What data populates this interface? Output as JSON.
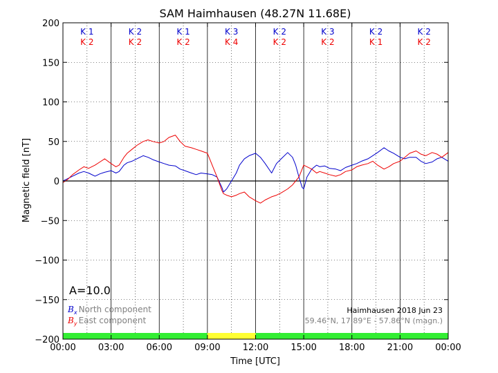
{
  "chart_data": {
    "type": "line",
    "title": "SAM Haimhausen (48.27N 11.68E)",
    "xlabel": "Time [UTC]",
    "ylabel": "Magnetic field [nT]",
    "xlim": [
      0,
      24
    ],
    "ylim": [
      -200,
      200
    ],
    "x_ticks": [
      0,
      3,
      6,
      9,
      12,
      15,
      18,
      21,
      24
    ],
    "x_tick_labels": [
      "00:00",
      "03:00",
      "06:00",
      "09:00",
      "12:00",
      "15:00",
      "18:00",
      "21:00",
      "00:00"
    ],
    "y_ticks": [
      -200,
      -150,
      -100,
      -50,
      0,
      50,
      100,
      150,
      200
    ],
    "y_tick_labels": [
      "−200",
      "−150",
      "−100",
      "−50",
      "0",
      "50",
      "100",
      "150",
      "200"
    ],
    "grid": true,
    "k_indices": {
      "bx": [
        1,
        2,
        1,
        3,
        2,
        3,
        2,
        2
      ],
      "by": [
        2,
        2,
        2,
        4,
        2,
        2,
        1,
        2
      ],
      "prefix": "K"
    },
    "activity_bar": [
      {
        "from": 0,
        "to": 9,
        "color": "#33ee33"
      },
      {
        "from": 9,
        "to": 12,
        "color": "#ffff33"
      },
      {
        "from": 12,
        "to": 24,
        "color": "#33ee33"
      }
    ],
    "annotations": {
      "a_index": "A=10.0",
      "station_date": "Haimhausen 2018 Jun 23",
      "coords": "59.46°N, 17.89°E - 57.86°N (magn.)"
    },
    "legend": {
      "placement": "bottom-left",
      "entries": [
        {
          "symbol": "B",
          "sub": "x",
          "label": "North component",
          "color": "#0000cc"
        },
        {
          "symbol": "B",
          "sub": "y",
          "label": "East component",
          "color": "#ee0000"
        }
      ]
    },
    "series": [
      {
        "color": "#0000cc",
        "x": [
          0,
          0.3,
          0.6,
          1,
          1.3,
          1.6,
          2,
          2.3,
          2.6,
          3,
          3.3,
          3.5,
          3.8,
          4,
          4.3,
          4.6,
          5,
          5.3,
          5.6,
          6,
          6.3,
          6.6,
          7,
          7.3,
          7.6,
          8,
          8.3,
          8.6,
          9,
          9.3,
          9.6,
          9.9,
          10,
          10.2,
          10.5,
          10.8,
          11,
          11.3,
          11.6,
          12,
          12.3,
          12.6,
          13,
          13.3,
          13.6,
          14,
          14.3,
          14.5,
          14.7,
          14.9,
          15,
          15.2,
          15.5,
          15.8,
          16,
          16.3,
          16.6,
          17,
          17.3,
          17.6,
          18,
          18.3,
          18.6,
          19,
          19.3,
          19.6,
          20,
          20.3,
          20.6,
          21,
          21.3,
          21.6,
          22,
          22.3,
          22.6,
          23,
          23.3,
          23.6,
          24
        ],
        "values": [
          0,
          3,
          6,
          10,
          12,
          10,
          6,
          9,
          11,
          13,
          10,
          12,
          20,
          23,
          25,
          28,
          32,
          30,
          27,
          24,
          22,
          20,
          19,
          15,
          13,
          10,
          8,
          10,
          9,
          8,
          5,
          -8,
          -14,
          -10,
          0,
          10,
          20,
          28,
          32,
          35,
          30,
          22,
          10,
          22,
          28,
          36,
          30,
          20,
          5,
          -8,
          -10,
          5,
          15,
          20,
          18,
          19,
          16,
          15,
          13,
          17,
          20,
          22,
          25,
          28,
          32,
          36,
          42,
          38,
          35,
          30,
          28,
          30,
          30,
          25,
          22,
          24,
          28,
          30,
          25
        ]
      },
      {
        "color": "#ee0000",
        "x": [
          0,
          0.3,
          0.6,
          1,
          1.3,
          1.6,
          2,
          2.3,
          2.6,
          3,
          3.3,
          3.5,
          3.8,
          4,
          4.3,
          4.6,
          5,
          5.3,
          5.6,
          6,
          6.3,
          6.6,
          7,
          7.3,
          7.6,
          8,
          8.3,
          8.6,
          9,
          9.3,
          9.6,
          9.9,
          10,
          10.2,
          10.5,
          10.8,
          11,
          11.3,
          11.6,
          12,
          12.3,
          12.6,
          13,
          13.3,
          13.6,
          14,
          14.3,
          14.5,
          14.7,
          14.9,
          15,
          15.2,
          15.5,
          15.8,
          16,
          16.3,
          16.6,
          17,
          17.3,
          17.6,
          18,
          18.3,
          18.6,
          19,
          19.3,
          19.6,
          20,
          20.3,
          20.6,
          21,
          21.3,
          21.6,
          22,
          22.3,
          22.6,
          23,
          23.3,
          23.6,
          24
        ],
        "values": [
          -2,
          2,
          8,
          14,
          18,
          16,
          20,
          24,
          28,
          22,
          18,
          20,
          30,
          35,
          40,
          45,
          50,
          52,
          50,
          48,
          50,
          55,
          58,
          50,
          44,
          42,
          40,
          38,
          35,
          20,
          5,
          -12,
          -16,
          -18,
          -20,
          -18,
          -16,
          -14,
          -20,
          -25,
          -28,
          -24,
          -20,
          -18,
          -15,
          -10,
          -5,
          0,
          5,
          15,
          20,
          18,
          15,
          10,
          12,
          10,
          8,
          6,
          8,
          12,
          14,
          18,
          20,
          22,
          25,
          20,
          15,
          18,
          22,
          25,
          30,
          35,
          38,
          34,
          32,
          36,
          34,
          30,
          36
        ]
      }
    ]
  }
}
